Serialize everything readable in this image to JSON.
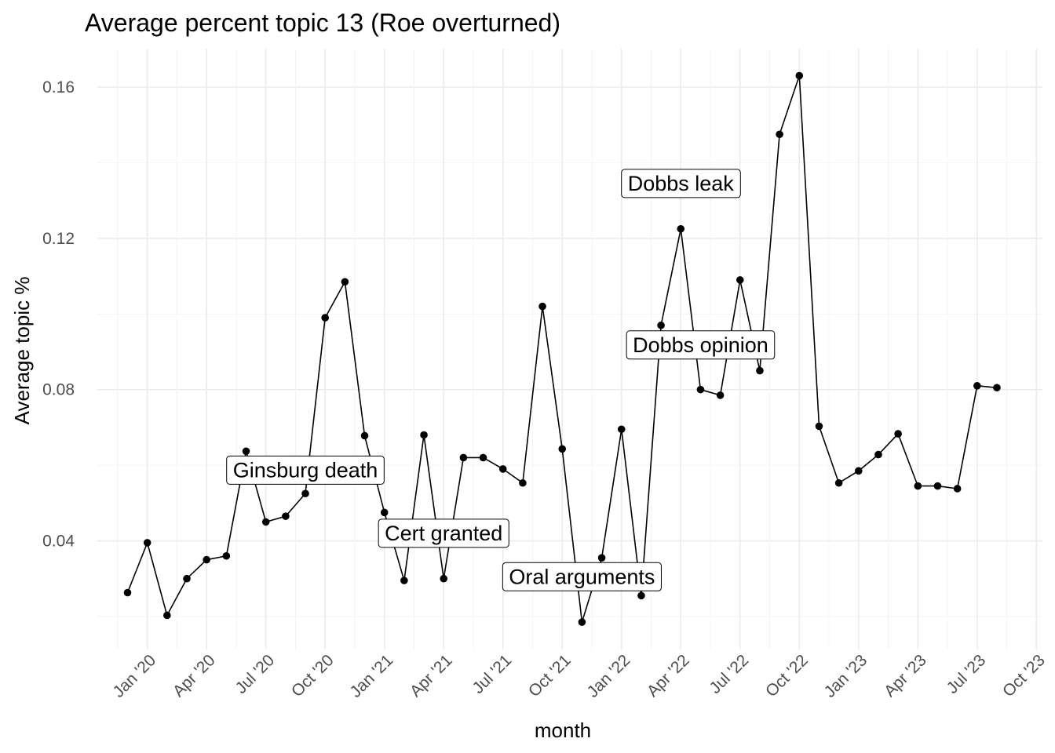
{
  "chart_data": {
    "type": "line",
    "title": "Average percent topic 13 (Roe overturned)",
    "xlabel": "month",
    "ylabel": "Average topic %",
    "x_start": "2019-12",
    "x_ticks": [
      "Jan '20",
      "Apr '20",
      "Jul '20",
      "Oct '20",
      "Jan '21",
      "Apr '21",
      "Jul '21",
      "Oct '21",
      "Jan '22",
      "Apr '22",
      "Jul '22",
      "Oct '22",
      "Jan '23",
      "Apr '23",
      "Jul '23",
      "Oct '23"
    ],
    "y_ticks": [
      "0.04",
      "0.08",
      "0.12",
      "0.16"
    ],
    "ylim": [
      0.012,
      0.17
    ],
    "grid": true,
    "series": [
      {
        "values": [
          0.0263,
          0.0395,
          0.0203,
          0.03,
          0.035,
          0.036,
          0.0637,
          0.045,
          0.0465,
          0.0525,
          0.099,
          0.1085,
          0.0678,
          0.0475,
          0.0295,
          0.068,
          0.03,
          0.062,
          0.062,
          0.059,
          0.0553,
          0.102,
          0.0643,
          0.0185,
          0.0355,
          0.0695,
          0.0255,
          0.097,
          0.1225,
          0.08,
          0.0785,
          0.109,
          0.085,
          0.1475,
          0.163,
          0.0703,
          0.0553,
          0.0585,
          0.0628,
          0.0683,
          0.0545,
          0.0545,
          0.0538,
          0.081,
          0.0805
        ]
      }
    ],
    "annotations": [
      {
        "text": "Ginsburg death",
        "x_index": 9,
        "y": 0.0587
      },
      {
        "text": "Cert granted",
        "x_index": 16,
        "y": 0.042
      },
      {
        "text": "Oral arguments",
        "x_index": 23,
        "y": 0.0305
      },
      {
        "text": "Dobbs leak",
        "x_index": 28,
        "y": 0.1345
      },
      {
        "text": "Dobbs opinion",
        "x_index": 29,
        "y": 0.0918
      }
    ]
  }
}
